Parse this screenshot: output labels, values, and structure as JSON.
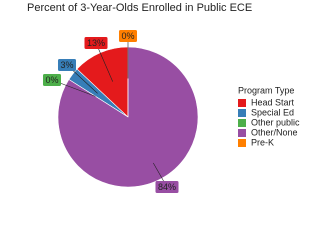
{
  "chart_data": {
    "type": "pie",
    "title": "Percent of 3-Year-Olds Enrolled in Public ECE",
    "legend_title": "Program Type",
    "legend_position": "right",
    "categories": [
      "Head Start",
      "Special Ed",
      "Other public",
      "Other/None",
      "Pre-K"
    ],
    "values": [
      13,
      3,
      0,
      84,
      0
    ],
    "value_labels": [
      "13%",
      "3%",
      "0%",
      "84%",
      "0%"
    ],
    "colors": [
      "#e41a1c",
      "#377eb8",
      "#4daf4a",
      "#984ea3",
      "#ff7f00"
    ]
  }
}
